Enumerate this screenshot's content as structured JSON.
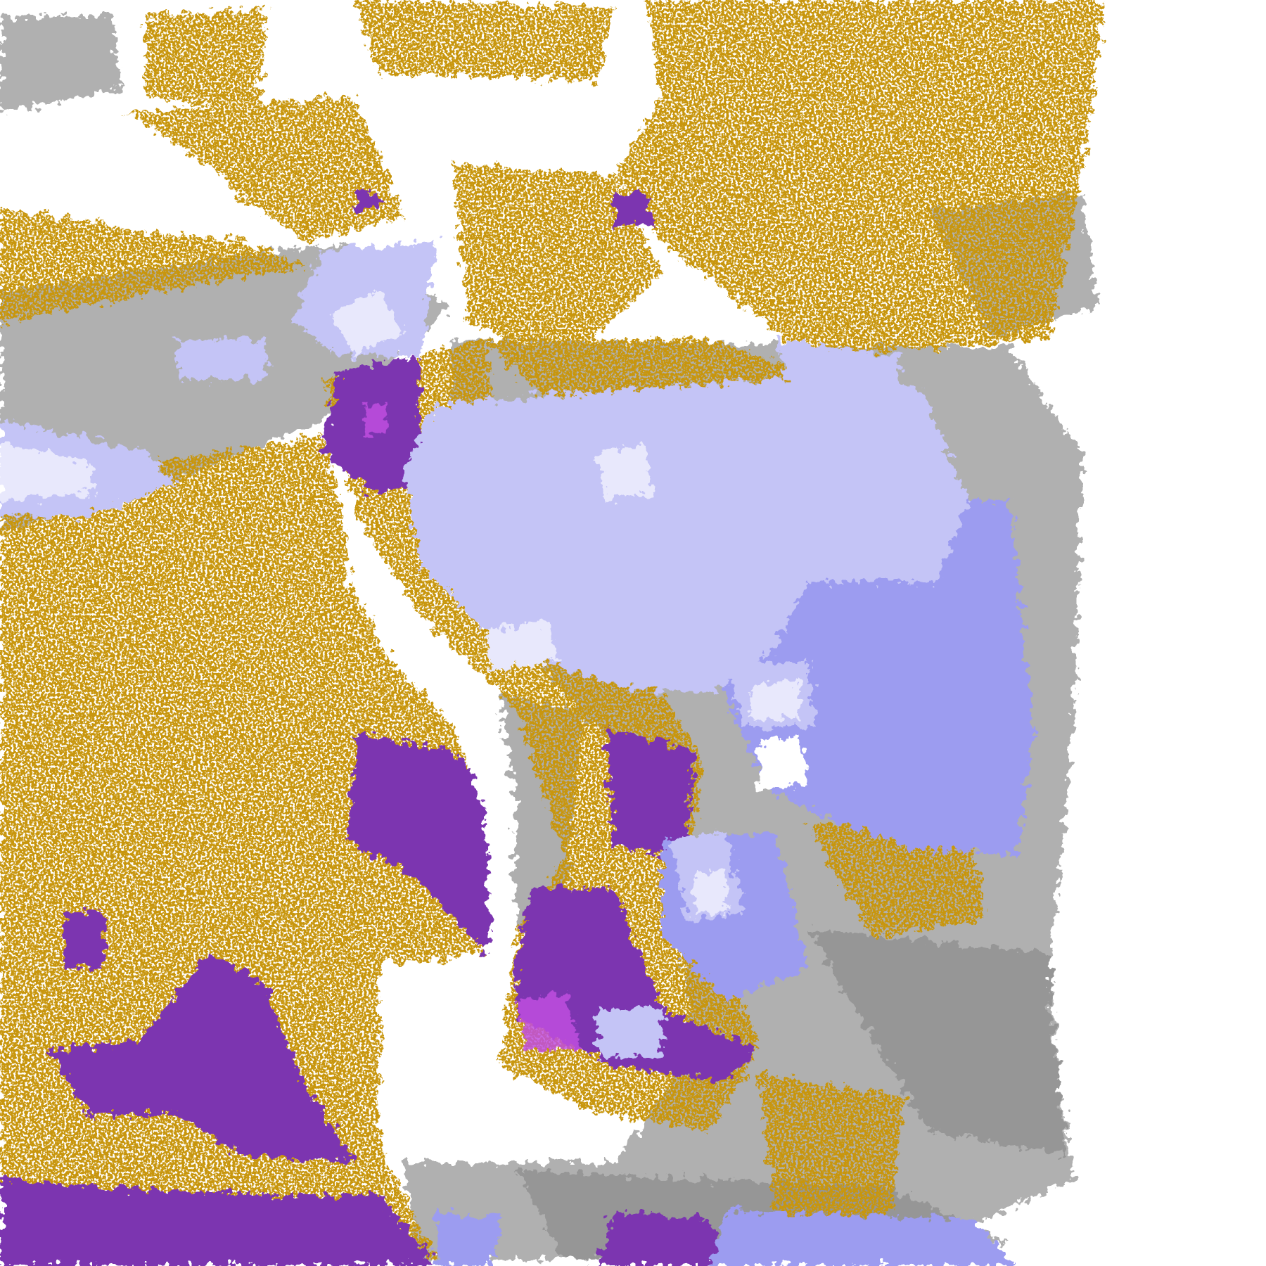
{
  "map": {
    "colors": {
      "background": "#ffffff",
      "gold": "#c8960a",
      "purple": "#7b35b0",
      "magenta": "#c050e0",
      "lavender_light": "#e8e8fc",
      "lavender": "#c4c4f6",
      "periwinkle": "#9c9cf0",
      "gray_light": "#b0b0b0",
      "gray_dark": "#8c8c8c"
    }
  }
}
